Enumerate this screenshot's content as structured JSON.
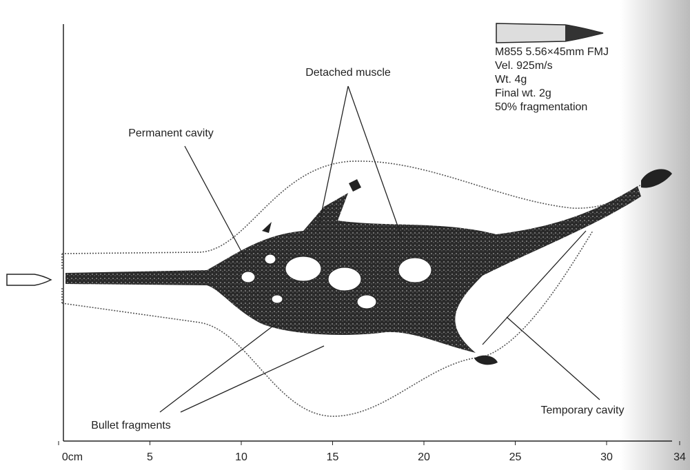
{
  "labels": {
    "detached_muscle": "Detached muscle",
    "permanent_cavity": "Permanent cavity",
    "bullet_fragments": "Bullet fragments",
    "temporary_cavity": "Temporary cavity"
  },
  "specs": [
    "M855 5.56×45mm FMJ",
    "Vel. 925m/s",
    "Wt. 4g",
    "Final wt. 2g",
    "50% fragmentation"
  ],
  "axis": {
    "ticks": [
      {
        "value": 0,
        "label": "0cm"
      },
      5,
      10,
      15,
      20,
      25,
      30,
      34
    ]
  }
}
